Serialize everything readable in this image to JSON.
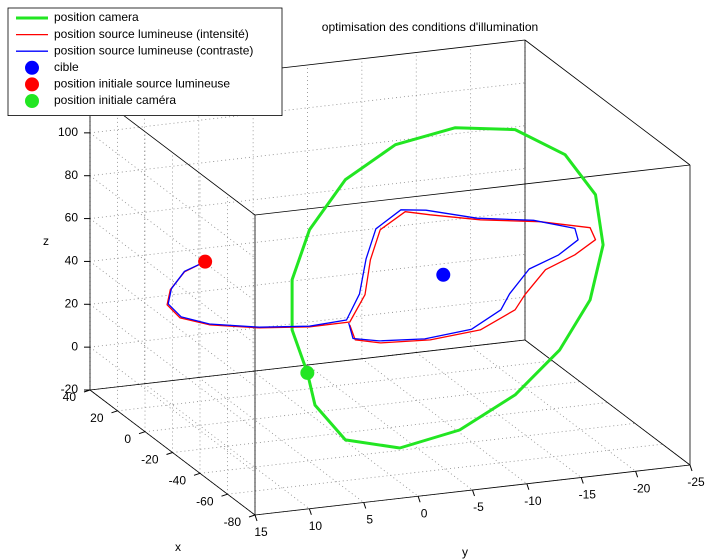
{
  "chart_data": {
    "type": "line3d",
    "title": "optimisation des conditions d'illumination",
    "xlabel": "x",
    "ylabel": "y",
    "zlabel": "z",
    "xlim": [
      -80,
      40
    ],
    "ylim": [
      -25,
      15
    ],
    "zlim": [
      -20,
      120
    ],
    "xticks": [
      -80,
      -60,
      -40,
      -20,
      0,
      20,
      40
    ],
    "yticks": [
      15,
      10,
      5,
      0,
      -5,
      -10,
      -15,
      -20,
      -25
    ],
    "zticks": [
      -20,
      0,
      20,
      40,
      60,
      80,
      100
    ],
    "grid": true,
    "legend": "upper left",
    "series": [
      {
        "name": "position camera",
        "type": "line",
        "color": "#22e622",
        "linewidth": 3,
        "x": [
          -20,
          -20,
          -20,
          -20,
          -20,
          -20,
          -20,
          -20,
          -20,
          -20,
          -20,
          -20,
          -20,
          -20,
          -20,
          -20,
          -20,
          -20,
          -20
        ],
        "y": [
          2.6,
          4.0,
          4.0,
          2.4,
          -0.9,
          -5.5,
          -11.0,
          -16.5,
          -21.1,
          -23.9,
          -24.6,
          -23.4,
          -20.6,
          -16.5,
          -11.4,
          -5.9,
          -0.9,
          1.9,
          2.6
        ],
        "z": [
          9.9,
          30.8,
          54.2,
          76.6,
          98.1,
          111.7,
          116.4,
          112.3,
          97.9,
          77.6,
          53.8,
          28.8,
          7.1,
          -11.5,
          -24.9,
          -30.1,
          -23.4,
          -5.5,
          9.9
        ]
      },
      {
        "name": "position source lumineuse (intensité)",
        "type": "line",
        "color": "#ff0000",
        "linewidth": 1.3,
        "x": [
          -20,
          -20,
          -20,
          -20,
          -20,
          -20,
          -20,
          -20,
          -20,
          -20,
          -20,
          -20,
          -20,
          -20,
          -20,
          -20,
          -20,
          -20,
          -20,
          -20,
          -20,
          -20,
          -20,
          -20,
          -20,
          -20,
          -20
        ],
        "y": [
          12.0,
          13.9,
          15.2,
          15.5,
          14.3,
          11.6,
          7.0,
          2.4,
          -1.3,
          -2.7,
          -3.2,
          -4.1,
          -6.4,
          -8.7,
          -13.3,
          -18.8,
          -23.4,
          -23.9,
          -22.0,
          -19.3,
          -17.4,
          -16.5,
          -13.3,
          -8.7,
          -4.1,
          -1.8,
          -1.3
        ],
        "z": [
          67.3,
          63.7,
          56.1,
          49.2,
          42.4,
          37.6,
          33.5,
          31.3,
          31.4,
          43.3,
          59.3,
          72.8,
          79.9,
          77.1,
          72.1,
          68.0,
          62.5,
          56.6,
          50.7,
          45.3,
          34.7,
          28.2,
          20.7,
          18.7,
          20.0,
          22.8,
          30.0
        ]
      },
      {
        "name": "position source lumineuse (contraste)",
        "type": "line",
        "color": "#0000ff",
        "linewidth": 1.3,
        "x": [
          -20,
          -20,
          -20,
          -20,
          -20,
          -20,
          -20,
          -20,
          -20,
          -20,
          -20,
          -20,
          -20,
          -20,
          -20,
          -20,
          -20,
          -20,
          -20,
          -20,
          -20,
          -20,
          -20,
          -20,
          -20,
          -20,
          -20
        ],
        "y": [
          12.0,
          13.9,
          15.1,
          15.4,
          14.2,
          11.6,
          7.0,
          2.4,
          -1.0,
          -2.2,
          -2.8,
          -3.7,
          -6.0,
          -8.3,
          -13.0,
          -18.2,
          -22.0,
          -22.3,
          -20.5,
          -17.8,
          -16.0,
          -15.2,
          -12.5,
          -8.2,
          -4.0,
          -1.6,
          -1.2
        ],
        "z": [
          67.3,
          63.9,
          56.5,
          49.6,
          42.8,
          38.0,
          33.8,
          31.6,
          32.5,
          44.0,
          60.0,
          73.5,
          81.0,
          79.5,
          73.0,
          69.0,
          63.0,
          57.5,
          51.5,
          46.5,
          36.0,
          29.0,
          21.5,
          19.5,
          21.0,
          23.5,
          31.0
        ]
      },
      {
        "name": "cible",
        "type": "scatter",
        "color": "#0000ff",
        "x": [
          -20
        ],
        "y": [
          -9.9
        ],
        "z": [
          48.4
        ]
      },
      {
        "name": "position initiale source lumineuse",
        "type": "scatter",
        "color": "#ff0000",
        "x": [
          -20
        ],
        "y": [
          12.0
        ],
        "z": [
          67.3
        ]
      },
      {
        "name": "position initiale caméra",
        "type": "scatter",
        "color": "#22e622",
        "x": [
          -20
        ],
        "y": [
          2.6
        ],
        "z": [
          9.9
        ]
      }
    ]
  }
}
